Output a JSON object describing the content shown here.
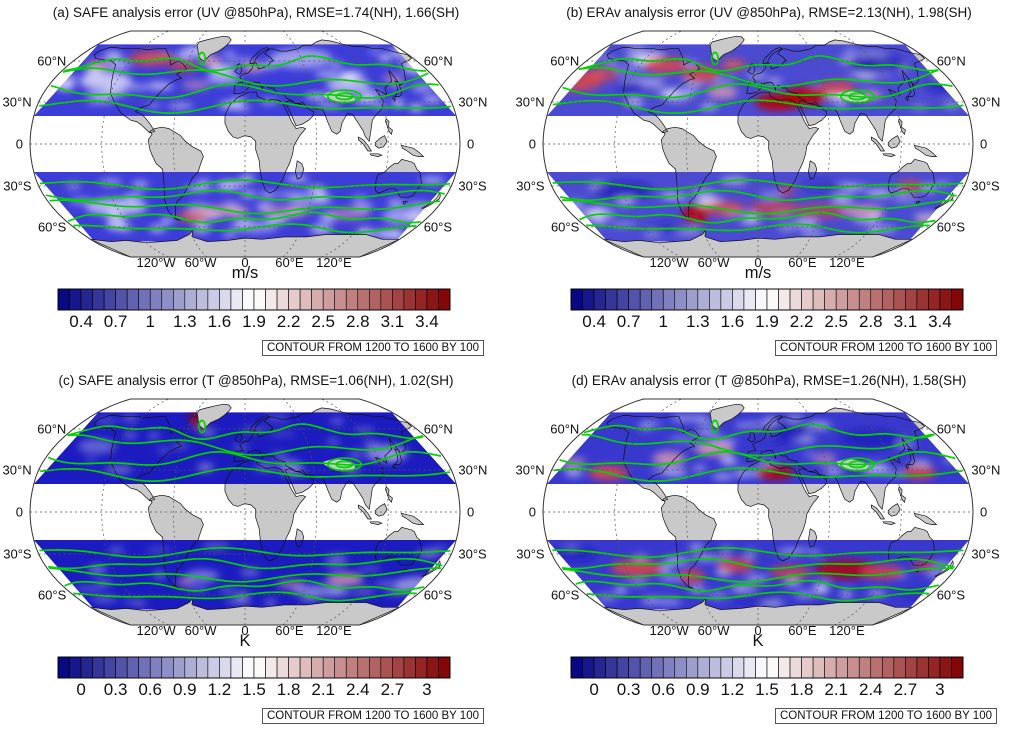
{
  "figure": {
    "background": "#ffffff",
    "colors": {
      "land": "#c9c9c9",
      "coastline": "#111111",
      "contour_green": "#00d400",
      "graticule": "#555555",
      "colormap_low": "#000080",
      "colormap_mid": "#ffffff",
      "colormap_high": "#800000"
    }
  },
  "axes": {
    "lat_labels": [
      "60°N",
      "30°N",
      "0",
      "30°S",
      "60°S"
    ],
    "lat_values": [
      60,
      30,
      0,
      -30,
      -60
    ],
    "lon_labels": [
      "120°W",
      "60°W",
      "0",
      "60°E",
      "120°E"
    ],
    "lon_values": [
      -120,
      -60,
      0,
      60,
      120
    ]
  },
  "panels": [
    {
      "id": "a",
      "title": "(a) SAFE analysis error (UV @850hPa), RMSE=1.74(NH), 1.66(SH)",
      "unit": "m/s",
      "contour_note": "CONTOUR FROM 1200 TO 1600 BY 100",
      "colorbar": {
        "ticks": [
          "0.4",
          "0.7",
          "1",
          "1.3",
          "1.6",
          "1.9",
          "2.2",
          "2.5",
          "2.8",
          "3.1",
          "3.4"
        ],
        "min": 0.2,
        "max": 3.6
      }
    },
    {
      "id": "b",
      "title": "(b) ERAv analysis error (UV @850hPa), RMSE=2.13(NH), 1.98(SH)",
      "unit": "m/s",
      "contour_note": "CONTOUR FROM 1200 TO 1600 BY 100",
      "colorbar": {
        "ticks": [
          "0.4",
          "0.7",
          "1",
          "1.3",
          "1.6",
          "1.9",
          "2.2",
          "2.5",
          "2.8",
          "3.1",
          "3.4"
        ],
        "min": 0.2,
        "max": 3.6
      }
    },
    {
      "id": "c",
      "title": "(c) SAFE analysis error (T @850hPa), RMSE=1.06(NH), 1.02(SH)",
      "unit": "K",
      "contour_note": "CONTOUR FROM 1200 TO 1600 BY 100",
      "colorbar": {
        "ticks": [
          "0",
          "0.3",
          "0.6",
          "0.9",
          "1.2",
          "1.5",
          "1.8",
          "2.1",
          "2.4",
          "2.7",
          "3"
        ],
        "min": -0.2,
        "max": 3.2
      }
    },
    {
      "id": "d",
      "title": "(d) ERAv analysis error (T @850hPa), RMSE=1.26(NH), 1.58(SH)",
      "unit": "K",
      "contour_note": "CONTOUR FROM 1200 TO 1600 BY 100",
      "colorbar": {
        "ticks": [
          "0",
          "0.3",
          "0.6",
          "0.9",
          "1.2",
          "1.5",
          "1.8",
          "2.1",
          "2.4",
          "2.7",
          "3"
        ],
        "min": -0.2,
        "max": 3.2
      }
    }
  ],
  "chart_data": [
    {
      "type": "heatmap",
      "subtype": "global-map",
      "panel": "a",
      "title": "(a) SAFE analysis error (UV @850hPa), RMSE=1.74(NH), 1.66(SH)",
      "experiment": "SAFE",
      "variable": "UV analysis error",
      "level": "850hPa",
      "rmse_nh": 1.74,
      "rmse_sh": 1.66,
      "units": "m/s",
      "colorbar_ticks": [
        0.4,
        0.7,
        1,
        1.3,
        1.6,
        1.9,
        2.2,
        2.5,
        2.8,
        3.1,
        3.4
      ],
      "colorbar_range_est": [
        0.2,
        3.6
      ],
      "overlay_contours": {
        "from": 1200,
        "to": 1600,
        "by": 100,
        "color": "green"
      },
      "masked_regions": [
        "tropics 20S-20N (white)",
        "Greenland",
        "Tibetan Plateau",
        "Antarctica"
      ],
      "pattern_notes": "mostly blue (low error); red patches near 55-65N over central Canada, Labrador Sea and N Atlantic; light pink along SH storm track 45-60S"
    },
    {
      "type": "heatmap",
      "subtype": "global-map",
      "panel": "b",
      "title": "(b) ERAv analysis error (UV @850hPa), RMSE=2.13(NH), 1.98(SH)",
      "experiment": "ERAv",
      "variable": "UV analysis error",
      "level": "850hPa",
      "rmse_nh": 2.13,
      "rmse_sh": 1.98,
      "units": "m/s",
      "colorbar_ticks": [
        0.4,
        0.7,
        1,
        1.3,
        1.6,
        1.9,
        2.2,
        2.5,
        2.8,
        3.1,
        3.4
      ],
      "colorbar_range_est": [
        0.2,
        3.6
      ],
      "overlay_contours": {
        "from": 1200,
        "to": 1600,
        "by": 100,
        "color": "green"
      },
      "masked_regions": [
        "tropics 20S-20N (white)",
        "Greenland",
        "Tibetan Plateau",
        "Antarctica"
      ],
      "pattern_notes": "large red areas: N Pacific 35-55N, E Canada/N Atlantic, dark red N Africa-Middle East 25-40N, Central Asia; SH red band 40-55S and southern South America; blue over E Siberia and subtropical oceans"
    },
    {
      "type": "heatmap",
      "subtype": "global-map",
      "panel": "c",
      "title": "(c) SAFE analysis error (T @850hPa), RMSE=1.06(NH), 1.02(SH)",
      "experiment": "SAFE",
      "variable": "T analysis error",
      "level": "850hPa",
      "rmse_nh": 1.06,
      "rmse_sh": 1.02,
      "units": "K",
      "colorbar_ticks": [
        0,
        0.3,
        0.6,
        0.9,
        1.2,
        1.5,
        1.8,
        2.1,
        2.4,
        2.7,
        3
      ],
      "colorbar_range_est": [
        -0.2,
        3.2
      ],
      "overlay_contours": {
        "from": 1200,
        "to": 1600,
        "by": 100,
        "color": "green"
      },
      "masked_regions": [
        "tropics 20S-20N (white)",
        "Greenland",
        "Tibetan Plateau",
        "Antarctica"
      ],
      "pattern_notes": "deep blue almost everywhere; isolated dark-red maximum over Baffin Bay / W Greenland; faint pink along SH Indian Ocean storm track ~50S"
    },
    {
      "type": "heatmap",
      "subtype": "global-map",
      "panel": "d",
      "title": "(d) ERAv analysis error (T @850hPa), RMSE=1.26(NH), 1.58(SH)",
      "experiment": "ERAv",
      "variable": "T analysis error",
      "level": "850hPa",
      "rmse_nh": 1.26,
      "rmse_sh": 1.58,
      "units": "K",
      "colorbar_ticks": [
        0,
        0.3,
        0.6,
        0.9,
        1.2,
        1.5,
        1.8,
        2.1,
        2.4,
        2.7,
        3
      ],
      "colorbar_range_est": [
        -0.2,
        3.2
      ],
      "overlay_contours": {
        "from": 1200,
        "to": 1600,
        "by": 100,
        "color": "green"
      },
      "masked_regions": [
        "tropics 20S-20N (white)",
        "Greenland",
        "Tibetan Plateau",
        "Antarctica"
      ],
      "pattern_notes": "blue NH with red patches near 28N (E Pacific, N Africa, W Pacific); broad red band across SH 30-50S, strongest over Indian Ocean toward Australia; blue near 60S"
    }
  ]
}
